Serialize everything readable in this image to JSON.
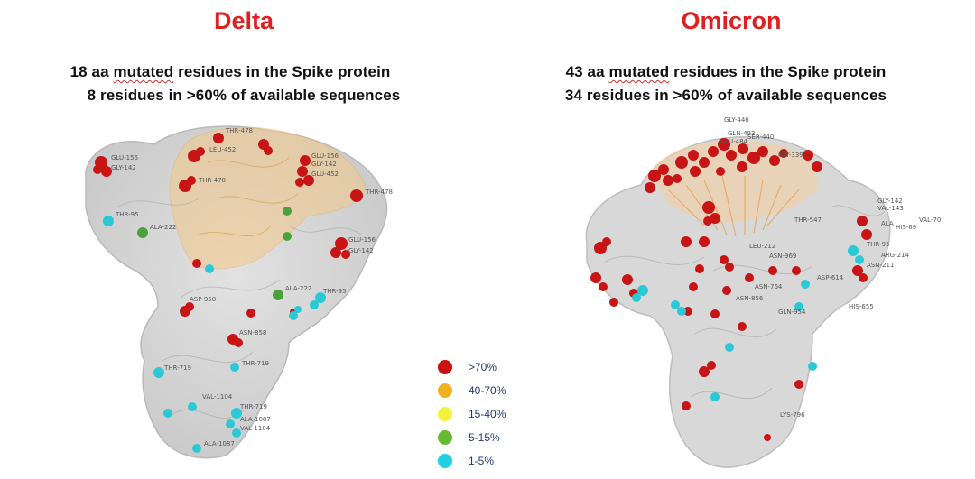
{
  "delta": {
    "title": "Delta",
    "line1_prefix": "18 aa",
    "line1_mid": "mutated",
    "line1_suffix": "residues in the Spike protein",
    "line2": "8 residues in >60% of available sequences",
    "labels": [
      "GLU-156",
      "GLY-142",
      "THR-95",
      "ALA-222",
      "THR-478",
      "LEU-452",
      "GLU-156",
      "GLY-142",
      "GLU-452",
      "THR-478",
      "THR-478",
      "GLU-156",
      "GLY-142",
      "ALA-222",
      "THR-95",
      "ASP-950",
      "ASN-858",
      "THR-719",
      "THR-719",
      "VAL-1104",
      "THR-719",
      "ALA-1087",
      "VAL-1104",
      "ALA-1087"
    ]
  },
  "omicron": {
    "title": "Omicron",
    "line1_prefix": "43 aa",
    "line1_mid": "mutated",
    "line1_suffix": "residues in the Spike protein",
    "line2": "34 residues in >60% of available sequences",
    "labels": [
      "GLY-446",
      "GLN-493",
      "SER-440",
      "GLU-484",
      "GLY-339",
      "GLY-142",
      "VAL-143",
      "VAL-70",
      "ALA",
      "HIS-69",
      "THR-547",
      "THR-95",
      "ARG-214",
      "ASN-211",
      "LEU-212",
      "ASN-969",
      "ASP-614",
      "HIS-655",
      "ASN-764",
      "GLN-954",
      "ASN-856",
      "LYS-796"
    ]
  },
  "legend": [
    {
      "label": ">70%",
      "color": "#cc1111"
    },
    {
      "label": "40-70%",
      "color": "#f2b11e"
    },
    {
      "label": "15-40%",
      "color": "#f5f23a"
    },
    {
      "label": "5-15%",
      "color": "#66bb33"
    },
    {
      "label": "1-5%",
      "color": "#22d0e0"
    }
  ]
}
